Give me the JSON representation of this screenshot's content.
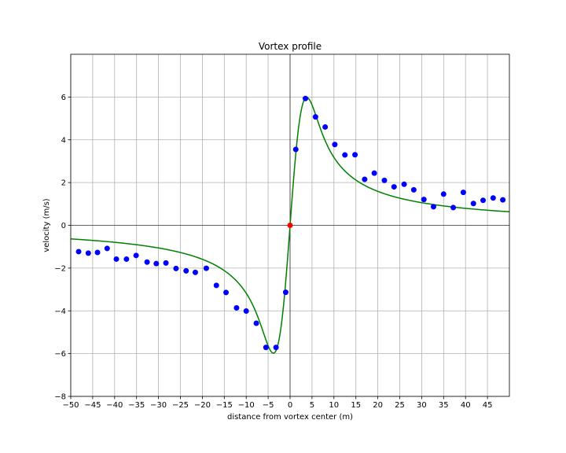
{
  "chart_data": {
    "type": "scatter",
    "title": "Vortex profile",
    "xlabel": "distance from vortex center (m)",
    "ylabel": "velocity (m/s)",
    "xlim": [
      -50,
      50
    ],
    "ylim": [
      -8,
      8
    ],
    "xticks": [
      -50,
      -45,
      -40,
      -35,
      -30,
      -25,
      -20,
      -15,
      -10,
      -5,
      0,
      5,
      10,
      15,
      20,
      25,
      30,
      35,
      40,
      45
    ],
    "yticks": [
      -8,
      -6,
      -4,
      -2,
      0,
      2,
      4,
      6
    ],
    "grid": true,
    "zero_lines": true,
    "series": [
      {
        "kind": "scatter",
        "color": "#0000ff",
        "points": [
          [
            -48.2,
            -1.23
          ],
          [
            -46.0,
            -1.3
          ],
          [
            -43.9,
            -1.27
          ],
          [
            -41.7,
            -1.08
          ],
          [
            -39.6,
            -1.58
          ],
          [
            -37.3,
            -1.58
          ],
          [
            -35.1,
            -1.41
          ],
          [
            -32.6,
            -1.72
          ],
          [
            -30.5,
            -1.79
          ],
          [
            -28.3,
            -1.76
          ],
          [
            -26.0,
            -2.02
          ],
          [
            -23.7,
            -2.13
          ],
          [
            -21.6,
            -2.2
          ],
          [
            -19.1,
            -2.01
          ],
          [
            -16.8,
            -2.81
          ],
          [
            -14.6,
            -3.14
          ],
          [
            -12.2,
            -3.86
          ],
          [
            -10.0,
            -4.01
          ],
          [
            -7.7,
            -4.58
          ],
          [
            -5.5,
            -5.71
          ],
          [
            -3.2,
            -5.71
          ],
          [
            -1.0,
            -3.13
          ],
          [
            1.3,
            3.55
          ],
          [
            3.5,
            5.93
          ],
          [
            5.8,
            5.07
          ],
          [
            8.0,
            4.6
          ],
          [
            10.2,
            3.78
          ],
          [
            12.5,
            3.29
          ],
          [
            14.8,
            3.3
          ],
          [
            17.0,
            2.15
          ],
          [
            19.2,
            2.44
          ],
          [
            21.5,
            2.1
          ],
          [
            23.7,
            1.8
          ],
          [
            26.0,
            1.92
          ],
          [
            28.2,
            1.66
          ],
          [
            30.5,
            1.21
          ],
          [
            32.7,
            0.87
          ],
          [
            35.0,
            1.46
          ],
          [
            37.2,
            0.83
          ],
          [
            39.5,
            1.54
          ],
          [
            41.8,
            1.02
          ],
          [
            44.0,
            1.17
          ],
          [
            46.3,
            1.28
          ],
          [
            48.5,
            1.19
          ]
        ]
      },
      {
        "kind": "scatter",
        "color": "#ff0000",
        "points": [
          [
            0.0,
            0.0
          ]
        ]
      },
      {
        "kind": "line",
        "color": "#008000",
        "model": "lamb-oseen",
        "params": {
          "vmax": 5.98,
          "rmax": 3.8
        }
      }
    ]
  }
}
